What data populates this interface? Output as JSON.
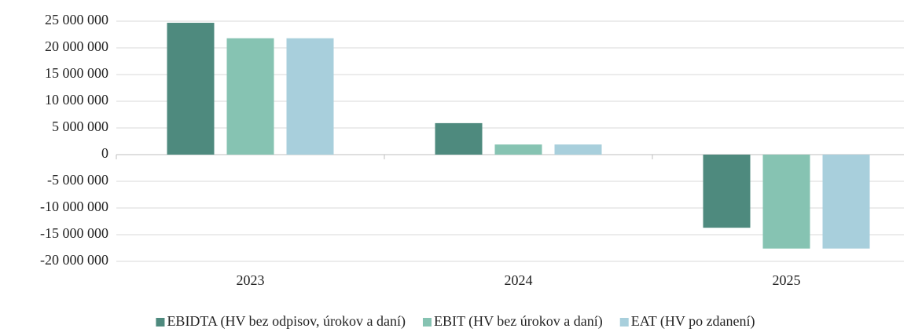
{
  "chart_data": {
    "type": "bar",
    "categories": [
      "2023",
      "2024",
      "2025"
    ],
    "series": [
      {
        "name": "EBIDTA (HV bez odpisov, úrokov a daní)",
        "color": "#4e8a7e",
        "values": [
          24700000,
          5900000,
          -13700000
        ]
      },
      {
        "name": "EBIT (HV bez úrokov a daní)",
        "color": "#86c3b2",
        "values": [
          21800000,
          1900000,
          -17600000
        ]
      },
      {
        "name": "EAT (HV po zdanení)",
        "color": "#a8cfdc",
        "values": [
          21800000,
          1900000,
          -17600000
        ]
      }
    ],
    "ylim": [
      -20000000,
      25000000
    ],
    "yticks": [
      {
        "value": -20000000,
        "label": "-20 000 000"
      },
      {
        "value": -15000000,
        "label": "-15 000 000"
      },
      {
        "value": -10000000,
        "label": "-10 000 000"
      },
      {
        "value": -5000000,
        "label": "-5 000 000"
      },
      {
        "value": 0,
        "label": "0"
      },
      {
        "value": 5000000,
        "label": "5 000 000"
      },
      {
        "value": 10000000,
        "label": "10 000 000"
      },
      {
        "value": 15000000,
        "label": "15 000 000"
      },
      {
        "value": 20000000,
        "label": "20 000 000"
      },
      {
        "value": 25000000,
        "label": "25 000 000"
      }
    ],
    "grid": true,
    "legend": "bottom"
  }
}
